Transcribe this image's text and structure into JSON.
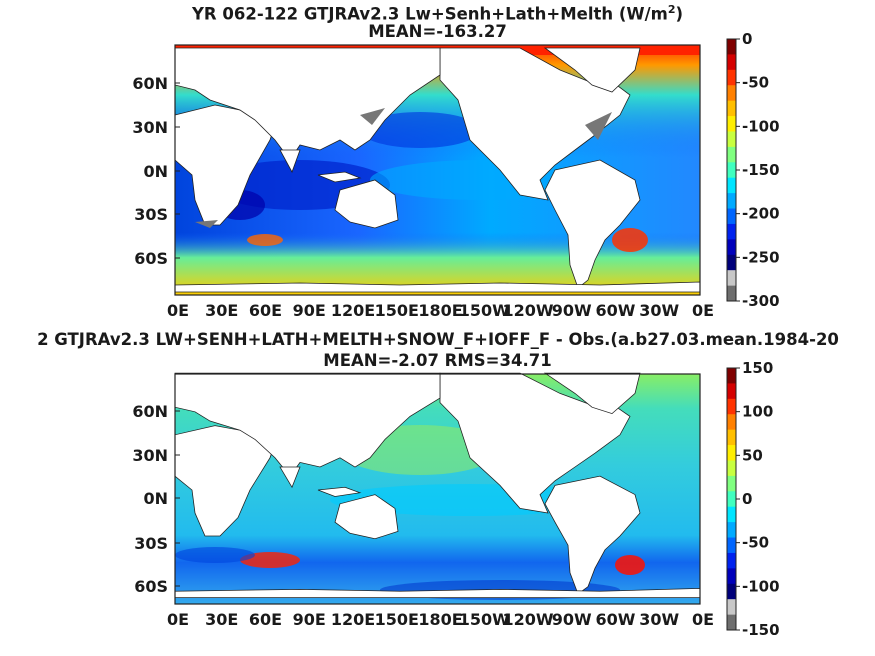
{
  "panels": [
    {
      "title_line1": "YR 062-122 GTJRAv2.3 Lw+Senh+Lath+Melth (W/m",
      "title_sup": "2",
      "title_close": ")",
      "title_line2": "MEAN=-163.27",
      "colorbar_ticks": [
        "0",
        "-50",
        "-100",
        "-150",
        "-200",
        "-250",
        "-300"
      ]
    },
    {
      "title_line1": "2 GTJRAv2.3 LW+SENH+LATH+MELTH+SNOW_F+IOFF_F - Obs.(a.b27.03.mean.1984-20",
      "title_line2": "MEAN=-2.07 RMS=34.71",
      "colorbar_ticks": [
        "150",
        "100",
        "50",
        "0",
        "-50",
        "-100",
        "-150"
      ]
    }
  ],
  "lat_labels": [
    "60N",
    "30N",
    "0N",
    "30S",
    "60S"
  ],
  "lon_labels": [
    "0E",
    "30E",
    "60E",
    "90E",
    "120E",
    "150E",
    "180E",
    "150W",
    "120W",
    "90W",
    "60W",
    "30W",
    "0E"
  ],
  "colormap": [
    "#7f0000",
    "#d40000",
    "#ff3300",
    "#ff8000",
    "#ffbf00",
    "#ffee00",
    "#c8ff40",
    "#80ff80",
    "#40ffbf",
    "#00e5ff",
    "#00aaff",
    "#0066ff",
    "#0022ee",
    "#0000bb",
    "#00007a"
  ],
  "missing_colors": [
    "#c8c8c8",
    "#6e6e6e"
  ],
  "land_color": "#ffffff"
}
